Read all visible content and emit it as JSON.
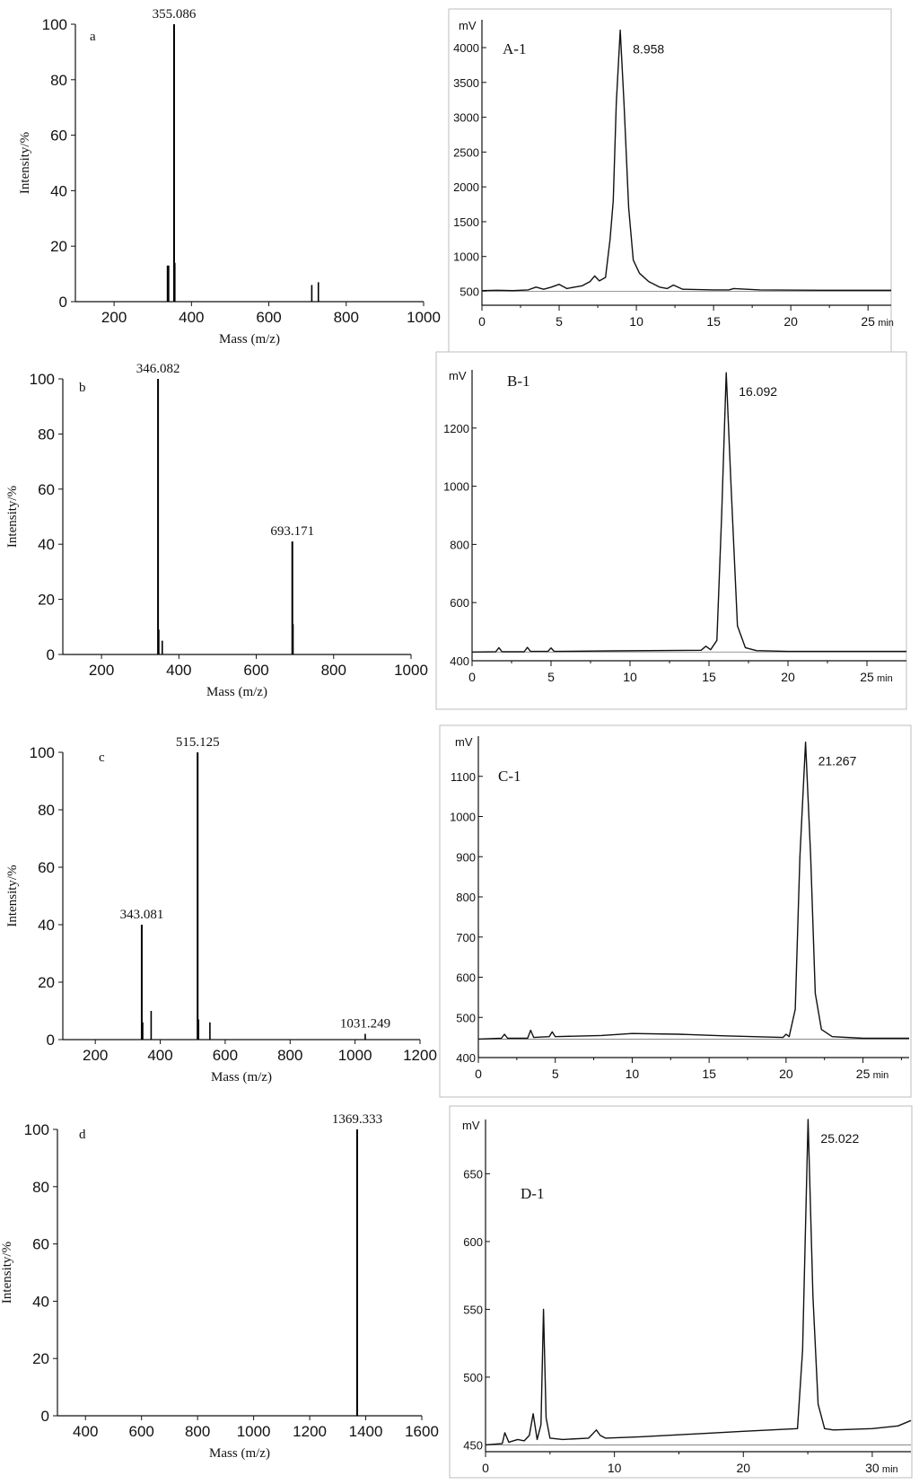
{
  "chart_data": [
    {
      "type": "bar",
      "panel": "a",
      "xlabel": "Mass (m/z)",
      "ylabel": "Intensity/%",
      "xlim": [
        100,
        1000
      ],
      "ylim": [
        0,
        100
      ],
      "xticks": [
        200,
        400,
        600,
        800,
        1000
      ],
      "yticks": [
        0,
        20,
        40,
        60,
        80,
        100
      ],
      "peaks": [
        {
          "x": 338,
          "y": 13
        },
        {
          "x": 341,
          "y": 13
        },
        {
          "x": 355.086,
          "y": 100,
          "label": "355.086"
        },
        {
          "x": 357,
          "y": 14
        },
        {
          "x": 711,
          "y": 6
        },
        {
          "x": 728,
          "y": 7
        }
      ]
    },
    {
      "type": "line",
      "panel": "A-1",
      "ylabel": "mV",
      "xlim": [
        0,
        26.5
      ],
      "ylim": [
        300,
        4400
      ],
      "xticks": [
        0,
        5,
        10,
        15,
        20,
        25
      ],
      "xtick_labels": [
        "0",
        "5",
        "10",
        "15",
        "20",
        "25"
      ],
      "x_unit": "min",
      "yticks": [
        500,
        1000,
        1500,
        2000,
        2500,
        3000,
        3500,
        4000
      ],
      "baseline": 500,
      "peak_label": "8.958",
      "x": [
        0,
        1,
        2,
        3,
        3.5,
        4,
        4.5,
        5,
        5.5,
        6,
        6.5,
        7,
        7.3,
        7.6,
        8,
        8.3,
        8.5,
        8.7,
        8.958,
        9.2,
        9.5,
        9.8,
        10.2,
        10.8,
        11.5,
        12,
        12.4,
        13,
        15,
        16,
        16.3,
        18,
        22,
        26.5
      ],
      "y": [
        510,
        515,
        510,
        520,
        560,
        530,
        560,
        600,
        540,
        560,
        580,
        640,
        720,
        650,
        700,
        1250,
        1800,
        3200,
        4250,
        3200,
        1700,
        950,
        760,
        640,
        560,
        540,
        590,
        530,
        520,
        520,
        540,
        520,
        515,
        515
      ]
    },
    {
      "type": "bar",
      "panel": "b",
      "xlabel": "Mass (m/z)",
      "ylabel": "Intensity/%",
      "xlim": [
        100,
        1000
      ],
      "ylim": [
        0,
        100
      ],
      "xticks": [
        200,
        400,
        600,
        800,
        1000
      ],
      "yticks": [
        0,
        20,
        40,
        60,
        80,
        100
      ],
      "peaks": [
        {
          "x": 346.082,
          "y": 100,
          "label": "346.082"
        },
        {
          "x": 348,
          "y": 9
        },
        {
          "x": 357,
          "y": 5
        },
        {
          "x": 693.171,
          "y": 41,
          "label": "693.171"
        },
        {
          "x": 695,
          "y": 11
        }
      ]
    },
    {
      "type": "line",
      "panel": "B-1",
      "ylabel": "mV",
      "xlim": [
        0,
        27.5
      ],
      "ylim": [
        400,
        1400
      ],
      "xticks": [
        0,
        5,
        10,
        15,
        20,
        25
      ],
      "xtick_labels": [
        "0",
        "5",
        "10",
        "15",
        "20",
        "25"
      ],
      "x_unit": "min",
      "yticks": [
        400,
        600,
        800,
        1000,
        1200
      ],
      "baseline": 430,
      "peak_label": "16.092",
      "x": [
        0,
        1.5,
        1.7,
        1.9,
        3.3,
        3.5,
        3.7,
        4.8,
        5.0,
        5.2,
        9,
        14.5,
        14.8,
        15.1,
        15.5,
        15.8,
        16.092,
        16.4,
        16.8,
        17.3,
        18,
        20,
        27.5
      ],
      "y": [
        430,
        431,
        445,
        431,
        431,
        446,
        432,
        432,
        444,
        432,
        434,
        436,
        450,
        438,
        470,
        900,
        1390,
        1000,
        520,
        445,
        435,
        432,
        432
      ]
    },
    {
      "type": "bar",
      "panel": "c",
      "xlabel": "Mass (m/z)",
      "ylabel": "Intensity/%",
      "xlim": [
        100,
        1200
      ],
      "ylim": [
        0,
        100
      ],
      "xticks": [
        200,
        400,
        600,
        800,
        1000,
        1200
      ],
      "yticks": [
        0,
        20,
        40,
        60,
        80,
        100
      ],
      "peaks": [
        {
          "x": 343.081,
          "y": 40,
          "label": "343.081"
        },
        {
          "x": 346,
          "y": 6
        },
        {
          "x": 372,
          "y": 10
        },
        {
          "x": 515.125,
          "y": 100,
          "label": "515.125"
        },
        {
          "x": 518,
          "y": 7
        },
        {
          "x": 553,
          "y": 6
        },
        {
          "x": 1031.249,
          "y": 2,
          "label": "1031.249"
        }
      ]
    },
    {
      "type": "line",
      "panel": "C-1",
      "ylabel": "mV",
      "xlim": [
        0,
        28
      ],
      "ylim": [
        400,
        1200
      ],
      "xticks": [
        0,
        5,
        10,
        15,
        20,
        25
      ],
      "xtick_labels": [
        "0",
        "5",
        "10",
        "15",
        "20",
        "25"
      ],
      "x_unit": "min",
      "yticks": [
        400,
        500,
        600,
        700,
        800,
        900,
        1000,
        1100
      ],
      "baseline": 446,
      "peak_label": "21.267",
      "x": [
        0,
        1.5,
        1.7,
        1.9,
        3.2,
        3.4,
        3.6,
        4.6,
        4.8,
        5.0,
        8,
        10,
        13,
        16,
        19.8,
        20.0,
        20.2,
        20.6,
        20.9,
        21.267,
        21.6,
        21.9,
        22.3,
        23,
        25,
        28
      ],
      "y": [
        446,
        448,
        458,
        448,
        448,
        468,
        450,
        452,
        464,
        452,
        455,
        460,
        458,
        454,
        450,
        458,
        452,
        520,
        900,
        1185,
        900,
        560,
        470,
        452,
        448,
        448
      ]
    },
    {
      "type": "bar",
      "panel": "d",
      "xlabel": "Mass (m/z)",
      "ylabel": "Intensity/%",
      "xlim": [
        300,
        1600
      ],
      "ylim": [
        0,
        100
      ],
      "xticks": [
        400,
        600,
        800,
        1000,
        1200,
        1400,
        1600
      ],
      "yticks": [
        0,
        20,
        40,
        60,
        80,
        100
      ],
      "peaks": [
        {
          "x": 1369.333,
          "y": 100,
          "label": "1369.333"
        }
      ]
    },
    {
      "type": "line",
      "panel": "D-1",
      "ylabel": "mV",
      "xlim": [
        0,
        33
      ],
      "ylim": [
        445,
        690
      ],
      "xticks": [
        0,
        10,
        20,
        30
      ],
      "xtick_labels": [
        "0",
        "10",
        "20",
        "30"
      ],
      "x_unit": "min",
      "yticks": [
        450,
        500,
        550,
        600,
        650
      ],
      "baseline": 450,
      "peak_label": "25.022",
      "x": [
        0,
        1.3,
        1.5,
        1.8,
        2.5,
        3.0,
        3.4,
        3.7,
        4.0,
        4.3,
        4.5,
        4.7,
        5.0,
        6,
        8,
        8.6,
        8.9,
        9.3,
        12,
        16,
        20,
        24.2,
        24.6,
        25.022,
        25.4,
        25.8,
        26.3,
        27,
        30,
        32,
        33
      ],
      "y": [
        450,
        451,
        459,
        452,
        454,
        453,
        457,
        473,
        454,
        465,
        550,
        470,
        455,
        454,
        455,
        461,
        457,
        455,
        456,
        458,
        460,
        462,
        520,
        690,
        560,
        480,
        462,
        461,
        462,
        464,
        468
      ]
    }
  ]
}
